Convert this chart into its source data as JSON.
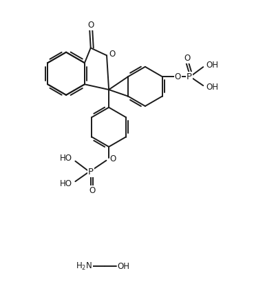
{
  "bg_color": "#ffffff",
  "line_color": "#1a1a1a",
  "line_width": 1.4,
  "font_size": 8.5,
  "figsize": [
    3.69,
    4.09
  ],
  "dpi": 100,
  "xlim": [
    0,
    10
  ],
  "ylim": [
    -1.5,
    11.5
  ]
}
